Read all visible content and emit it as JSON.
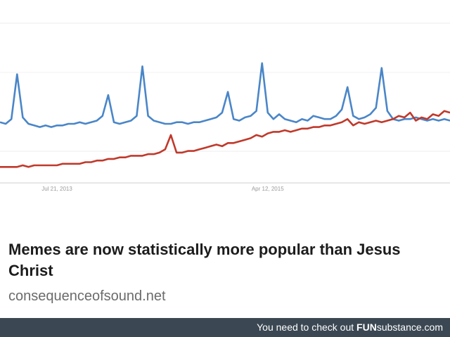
{
  "chart_data": {
    "type": "line",
    "xlim": [
      0,
      79
    ],
    "xticks": [
      {
        "value": 10,
        "label": "Jul 21, 2013"
      },
      {
        "value": 47,
        "label": "Apr 12, 2015"
      }
    ],
    "ylim": [
      0,
      100
    ],
    "series": [
      {
        "color": "#4a86c8",
        "values": [
          38,
          37,
          40,
          68,
          41,
          37,
          36,
          35,
          36,
          35,
          36,
          36,
          37,
          37,
          38,
          37,
          38,
          39,
          42,
          55,
          38,
          37,
          38,
          39,
          42,
          73,
          42,
          39,
          38,
          37,
          37,
          38,
          38,
          37,
          38,
          38,
          39,
          40,
          41,
          44,
          57,
          40,
          39,
          41,
          42,
          45,
          75,
          44,
          40,
          43,
          40,
          39,
          38,
          40,
          39,
          42,
          41,
          40,
          40,
          42,
          46,
          60,
          42,
          40,
          41,
          43,
          47,
          72,
          45,
          40,
          39,
          40,
          40,
          41,
          40,
          39,
          40,
          39,
          40,
          39
        ]
      },
      {
        "color": "#c0392b",
        "values": [
          10,
          10,
          10,
          10,
          11,
          10,
          11,
          11,
          11,
          11,
          11,
          12,
          12,
          12,
          12,
          13,
          13,
          14,
          14,
          15,
          15,
          16,
          16,
          17,
          17,
          17,
          18,
          18,
          19,
          21,
          30,
          19,
          19,
          20,
          20,
          21,
          22,
          23,
          24,
          23,
          25,
          25,
          26,
          27,
          28,
          30,
          29,
          31,
          32,
          32,
          33,
          32,
          33,
          34,
          34,
          35,
          35,
          36,
          36,
          37,
          38,
          40,
          36,
          38,
          37,
          38,
          39,
          38,
          39,
          40,
          42,
          41,
          44,
          39,
          41,
          40,
          43,
          42,
          45,
          44
        ]
      }
    ]
  },
  "headline": "Memes are now statistically more popular than Jesus Christ",
  "source": "consequenceofsound.net",
  "footer": {
    "prefix": "You need to check out",
    "brand_bold": "FUN",
    "brand_rest": "substance.com"
  }
}
